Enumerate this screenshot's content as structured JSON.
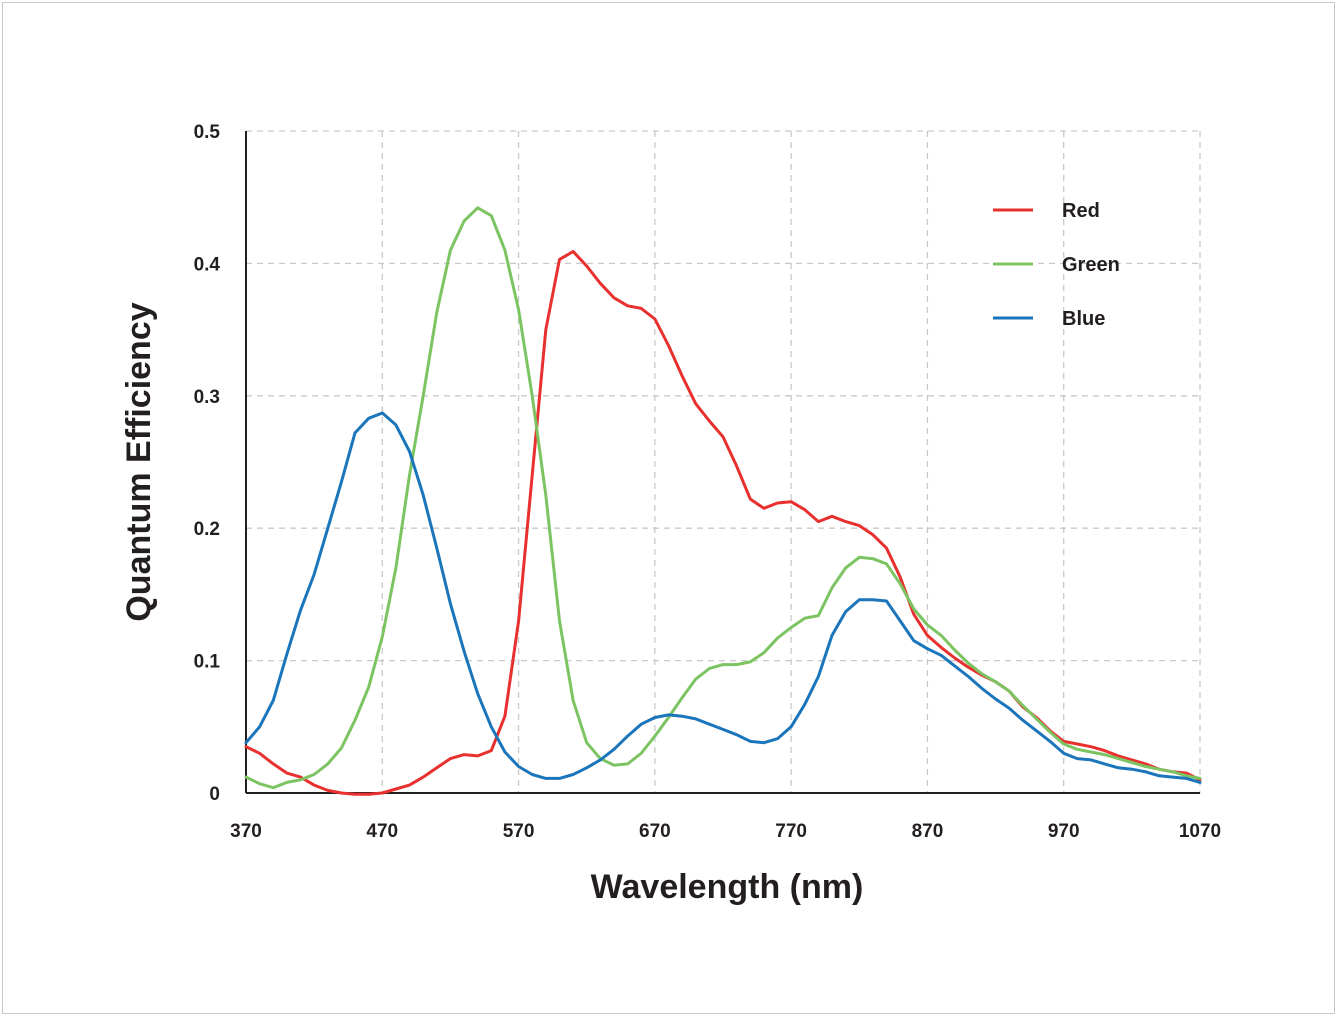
{
  "chart_data": {
    "type": "line",
    "title": "",
    "xlabel": "Wavelength (nm)",
    "ylabel": "Quantum Efficiency",
    "xlim": [
      370,
      1070
    ],
    "ylim": [
      0,
      0.5
    ],
    "x_ticks": [
      "370",
      "470",
      "570",
      "670",
      "770",
      "870",
      "970",
      "1070"
    ],
    "y_ticks": [
      "0",
      "0.1",
      "0.2",
      "0.3",
      "0.4",
      "0.5"
    ],
    "grid": true,
    "legend_position": "top-right",
    "series": [
      {
        "name": "Red",
        "color": "#e8302f",
        "points": [
          [
            370,
            0.035
          ],
          [
            380,
            0.03
          ],
          [
            390,
            0.022
          ],
          [
            400,
            0.015
          ],
          [
            410,
            0.012
          ],
          [
            420,
            0.006
          ],
          [
            430,
            0.002
          ],
          [
            440,
            0.0
          ],
          [
            450,
            -0.001
          ],
          [
            460,
            -0.001
          ],
          [
            470,
            0.0
          ],
          [
            480,
            0.003
          ],
          [
            490,
            0.006
          ],
          [
            500,
            0.012
          ],
          [
            510,
            0.019
          ],
          [
            520,
            0.026
          ],
          [
            530,
            0.029
          ],
          [
            540,
            0.028
          ],
          [
            550,
            0.032
          ],
          [
            560,
            0.058
          ],
          [
            570,
            0.13
          ],
          [
            580,
            0.24
          ],
          [
            590,
            0.35
          ],
          [
            600,
            0.403
          ],
          [
            610,
            0.409
          ],
          [
            620,
            0.398
          ],
          [
            630,
            0.385
          ],
          [
            640,
            0.374
          ],
          [
            650,
            0.368
          ],
          [
            660,
            0.366
          ],
          [
            670,
            0.358
          ],
          [
            680,
            0.338
          ],
          [
            690,
            0.315
          ],
          [
            700,
            0.294
          ],
          [
            710,
            0.281
          ],
          [
            720,
            0.269
          ],
          [
            730,
            0.247
          ],
          [
            740,
            0.222
          ],
          [
            750,
            0.215
          ],
          [
            760,
            0.219
          ],
          [
            770,
            0.22
          ],
          [
            780,
            0.214
          ],
          [
            790,
            0.205
          ],
          [
            800,
            0.209
          ],
          [
            810,
            0.205
          ],
          [
            820,
            0.202
          ],
          [
            830,
            0.195
          ],
          [
            840,
            0.185
          ],
          [
            850,
            0.163
          ],
          [
            860,
            0.135
          ],
          [
            870,
            0.119
          ],
          [
            880,
            0.11
          ],
          [
            890,
            0.102
          ],
          [
            900,
            0.095
          ],
          [
            910,
            0.089
          ],
          [
            920,
            0.084
          ],
          [
            930,
            0.077
          ],
          [
            940,
            0.065
          ],
          [
            950,
            0.057
          ],
          [
            960,
            0.047
          ],
          [
            970,
            0.039
          ],
          [
            980,
            0.037
          ],
          [
            990,
            0.035
          ],
          [
            1000,
            0.032
          ],
          [
            1010,
            0.028
          ],
          [
            1020,
            0.025
          ],
          [
            1030,
            0.022
          ],
          [
            1040,
            0.018
          ],
          [
            1050,
            0.016
          ],
          [
            1060,
            0.015
          ],
          [
            1070,
            0.01
          ]
        ]
      },
      {
        "name": "Green",
        "color": "#7cc462",
        "points": [
          [
            370,
            0.012
          ],
          [
            380,
            0.007
          ],
          [
            390,
            0.004
          ],
          [
            400,
            0.008
          ],
          [
            410,
            0.01
          ],
          [
            420,
            0.014
          ],
          [
            430,
            0.022
          ],
          [
            440,
            0.034
          ],
          [
            450,
            0.055
          ],
          [
            460,
            0.08
          ],
          [
            470,
            0.118
          ],
          [
            480,
            0.17
          ],
          [
            490,
            0.24
          ],
          [
            500,
            0.3
          ],
          [
            510,
            0.363
          ],
          [
            520,
            0.41
          ],
          [
            530,
            0.432
          ],
          [
            540,
            0.442
          ],
          [
            550,
            0.436
          ],
          [
            560,
            0.41
          ],
          [
            570,
            0.365
          ],
          [
            580,
            0.3
          ],
          [
            590,
            0.225
          ],
          [
            600,
            0.13
          ],
          [
            610,
            0.07
          ],
          [
            620,
            0.038
          ],
          [
            630,
            0.026
          ],
          [
            640,
            0.021
          ],
          [
            650,
            0.022
          ],
          [
            660,
            0.03
          ],
          [
            670,
            0.043
          ],
          [
            680,
            0.057
          ],
          [
            690,
            0.072
          ],
          [
            700,
            0.086
          ],
          [
            710,
            0.094
          ],
          [
            720,
            0.097
          ],
          [
            730,
            0.097
          ],
          [
            740,
            0.099
          ],
          [
            750,
            0.106
          ],
          [
            760,
            0.117
          ],
          [
            770,
            0.125
          ],
          [
            780,
            0.132
          ],
          [
            790,
            0.134
          ],
          [
            800,
            0.155
          ],
          [
            810,
            0.17
          ],
          [
            820,
            0.178
          ],
          [
            830,
            0.177
          ],
          [
            840,
            0.173
          ],
          [
            850,
            0.158
          ],
          [
            860,
            0.139
          ],
          [
            870,
            0.127
          ],
          [
            880,
            0.119
          ],
          [
            890,
            0.108
          ],
          [
            900,
            0.098
          ],
          [
            910,
            0.09
          ],
          [
            920,
            0.084
          ],
          [
            930,
            0.077
          ],
          [
            940,
            0.066
          ],
          [
            950,
            0.056
          ],
          [
            960,
            0.046
          ],
          [
            970,
            0.037
          ],
          [
            980,
            0.033
          ],
          [
            990,
            0.031
          ],
          [
            1000,
            0.029
          ],
          [
            1010,
            0.026
          ],
          [
            1020,
            0.023
          ],
          [
            1030,
            0.02
          ],
          [
            1040,
            0.018
          ],
          [
            1050,
            0.016
          ],
          [
            1060,
            0.013
          ],
          [
            1070,
            0.011
          ]
        ]
      },
      {
        "name": "Blue",
        "color": "#1b75bb",
        "points": [
          [
            370,
            0.038
          ],
          [
            380,
            0.05
          ],
          [
            390,
            0.07
          ],
          [
            400,
            0.105
          ],
          [
            410,
            0.138
          ],
          [
            420,
            0.165
          ],
          [
            430,
            0.2
          ],
          [
            440,
            0.235
          ],
          [
            450,
            0.272
          ],
          [
            460,
            0.283
          ],
          [
            470,
            0.287
          ],
          [
            480,
            0.278
          ],
          [
            490,
            0.258
          ],
          [
            500,
            0.225
          ],
          [
            510,
            0.185
          ],
          [
            520,
            0.143
          ],
          [
            530,
            0.107
          ],
          [
            540,
            0.075
          ],
          [
            550,
            0.05
          ],
          [
            560,
            0.031
          ],
          [
            570,
            0.02
          ],
          [
            580,
            0.014
          ],
          [
            590,
            0.011
          ],
          [
            600,
            0.011
          ],
          [
            610,
            0.014
          ],
          [
            620,
            0.019
          ],
          [
            630,
            0.025
          ],
          [
            640,
            0.033
          ],
          [
            650,
            0.043
          ],
          [
            660,
            0.052
          ],
          [
            670,
            0.057
          ],
          [
            680,
            0.059
          ],
          [
            690,
            0.058
          ],
          [
            700,
            0.056
          ],
          [
            710,
            0.052
          ],
          [
            720,
            0.048
          ],
          [
            730,
            0.044
          ],
          [
            740,
            0.039
          ],
          [
            750,
            0.038
          ],
          [
            760,
            0.041
          ],
          [
            770,
            0.05
          ],
          [
            780,
            0.067
          ],
          [
            790,
            0.088
          ],
          [
            800,
            0.119
          ],
          [
            810,
            0.137
          ],
          [
            820,
            0.146
          ],
          [
            830,
            0.146
          ],
          [
            840,
            0.145
          ],
          [
            850,
            0.13
          ],
          [
            860,
            0.115
          ],
          [
            870,
            0.109
          ],
          [
            880,
            0.104
          ],
          [
            890,
            0.096
          ],
          [
            900,
            0.088
          ],
          [
            910,
            0.079
          ],
          [
            920,
            0.071
          ],
          [
            930,
            0.064
          ],
          [
            940,
            0.055
          ],
          [
            950,
            0.047
          ],
          [
            960,
            0.039
          ],
          [
            970,
            0.03
          ],
          [
            980,
            0.026
          ],
          [
            990,
            0.025
          ],
          [
            1000,
            0.022
          ],
          [
            1010,
            0.019
          ],
          [
            1020,
            0.018
          ],
          [
            1030,
            0.016
          ],
          [
            1040,
            0.013
          ],
          [
            1050,
            0.012
          ],
          [
            1060,
            0.011
          ],
          [
            1070,
            0.008
          ]
        ]
      }
    ]
  }
}
